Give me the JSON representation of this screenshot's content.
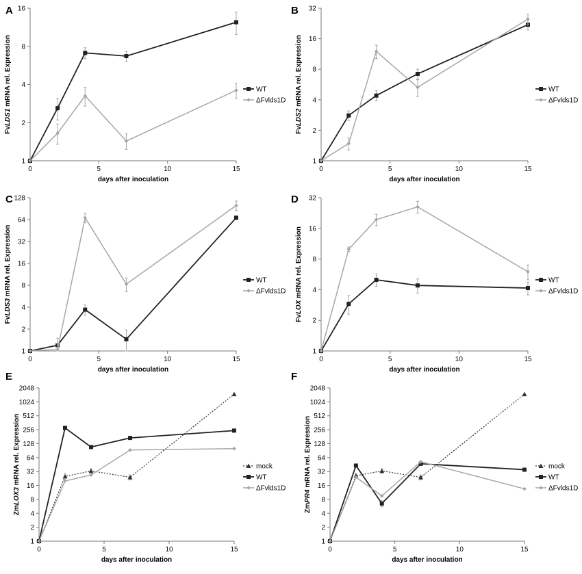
{
  "colors": {
    "wt": "#222222",
    "mutant": "#a6a6a6",
    "mock": "#333333",
    "axis": "#777777"
  },
  "chart_data": [
    {
      "panel": "A",
      "type": "line",
      "ylabel_prefix": "Fv",
      "ylabel_gene": "LDS1",
      "ylabel_suffix": " mRNA rel. Expression",
      "xlabel": "days after inoculation",
      "xticks": [
        0,
        5,
        10,
        15
      ],
      "yticks": [
        1,
        2,
        4,
        8,
        16
      ],
      "ylim": [
        1,
        16
      ],
      "xlim": [
        0,
        15
      ],
      "x": [
        0,
        2,
        4,
        7,
        15
      ],
      "series": [
        {
          "name": "WT",
          "marker": "square",
          "style": "wt",
          "values": [
            1,
            2.6,
            7.1,
            6.7,
            12.4
          ],
          "err": [
            0,
            0.5,
            0.7,
            0.6,
            2.5
          ]
        },
        {
          "name": "ΔFvlds1D",
          "marker": "diamond",
          "style": "mutant",
          "values": [
            1,
            1.65,
            3.25,
            1.43,
            3.6
          ],
          "err": [
            0,
            0.3,
            0.55,
            0.2,
            0.5
          ]
        }
      ]
    },
    {
      "panel": "B",
      "type": "line",
      "ylabel_prefix": "Fv",
      "ylabel_gene": "LDS2",
      "ylabel_suffix": " mRNA rel. Expression",
      "xlabel": "days after inoculation",
      "xticks": [
        0,
        5,
        10,
        15
      ],
      "yticks": [
        1,
        2,
        4,
        8,
        16,
        32
      ],
      "ylim": [
        1,
        32
      ],
      "xlim": [
        0,
        15
      ],
      "x": [
        0,
        2,
        4,
        7,
        15
      ],
      "series": [
        {
          "name": "WT",
          "marker": "square",
          "style": "wt",
          "values": [
            1,
            2.8,
            4.4,
            7.2,
            22
          ],
          "err": [
            0,
            0.3,
            0.5,
            0.8,
            2.5
          ]
        },
        {
          "name": "ΔFvlds1D",
          "marker": "diamond",
          "style": "mutant",
          "values": [
            1,
            1.48,
            12,
            5.3,
            25
          ],
          "err": [
            0,
            0.2,
            1.8,
            1.0,
            3.0
          ]
        }
      ]
    },
    {
      "panel": "C",
      "type": "line",
      "ylabel_prefix": "Fv",
      "ylabel_gene": "LDS3",
      "ylabel_suffix": " mRNA rel. Expression",
      "xlabel": "days after inoculation",
      "xticks": [
        0,
        5,
        10,
        15
      ],
      "yticks": [
        1,
        2,
        4,
        8,
        16,
        32,
        64,
        128
      ],
      "ylim": [
        1,
        128
      ],
      "xlim": [
        0,
        15
      ],
      "x": [
        0,
        2,
        4,
        7,
        15
      ],
      "series": [
        {
          "name": "WT",
          "marker": "square",
          "style": "wt",
          "values": [
            1,
            1.2,
            3.7,
            1.45,
            68
          ],
          "err": [
            0,
            0.3,
            0.6,
            0.5,
            4
          ]
        },
        {
          "name": "ΔFvlds1D",
          "marker": "diamond",
          "style": "mutant",
          "values": [
            1,
            1.05,
            68,
            8.3,
            100
          ],
          "err": [
            0,
            0.2,
            10,
            1.8,
            15
          ]
        }
      ]
    },
    {
      "panel": "D",
      "type": "line",
      "ylabel_prefix": "Fv",
      "ylabel_gene": "LOX",
      "ylabel_suffix": " mRNA rel. Expression",
      "xlabel": "days after inoculation",
      "xticks": [
        0,
        5,
        10,
        15
      ],
      "yticks": [
        1,
        2,
        4,
        8,
        16,
        32
      ],
      "ylim": [
        1,
        32
      ],
      "xlim": [
        0,
        15
      ],
      "x": [
        0,
        2,
        4,
        7,
        15
      ],
      "series": [
        {
          "name": "WT",
          "marker": "square",
          "style": "wt",
          "values": [
            1,
            2.9,
            5.0,
            4.4,
            4.15
          ],
          "err": [
            0,
            0.6,
            0.7,
            0.7,
            0.6
          ]
        },
        {
          "name": "ΔFvlds1D",
          "marker": "diamond",
          "style": "mutant",
          "values": [
            1,
            10,
            19.5,
            26,
            6
          ],
          "err": [
            0,
            0.5,
            2.5,
            3.5,
            1.0
          ]
        }
      ]
    },
    {
      "panel": "E",
      "type": "line",
      "ylabel_prefix": "Zm",
      "ylabel_gene": "LOX3",
      "ylabel_suffix": " mRNA rel. Expression",
      "xlabel": "days after inoculation",
      "xticks": [
        0,
        5,
        10,
        15
      ],
      "yticks": [
        1,
        2,
        4,
        8,
        16,
        32,
        64,
        128,
        256,
        512,
        1024,
        2048
      ],
      "ylim": [
        1,
        2048
      ],
      "xlim": [
        0,
        15
      ],
      "x": [
        0,
        2,
        4,
        7,
        15
      ],
      "series": [
        {
          "name": "mock",
          "marker": "triangle",
          "style": "mock",
          "values": [
            1,
            25,
            33,
            24,
            1500
          ],
          "err": [
            0,
            4,
            4,
            3,
            0
          ]
        },
        {
          "name": "WT",
          "marker": "square",
          "style": "wt",
          "values": [
            1,
            280,
            108,
            170,
            245
          ],
          "err": [
            0,
            0,
            0,
            0,
            0
          ]
        },
        {
          "name": "ΔFvlds1D",
          "marker": "diamond",
          "style": "mutant",
          "values": [
            1,
            20,
            27,
            93,
            100
          ],
          "err": [
            0,
            0,
            0,
            0,
            0
          ]
        }
      ]
    },
    {
      "panel": "F",
      "type": "line",
      "ylabel_prefix": "Zm",
      "ylabel_gene": "PR4",
      "ylabel_suffix": " mRNA rel. Expression",
      "xlabel": "days after inoculation",
      "xticks": [
        0,
        5,
        10,
        15
      ],
      "yticks": [
        1,
        2,
        4,
        8,
        16,
        32,
        64,
        128,
        256,
        512,
        1024,
        2048
      ],
      "ylim": [
        1,
        2048
      ],
      "xlim": [
        0,
        15
      ],
      "x": [
        0,
        2,
        4,
        7,
        15
      ],
      "series": [
        {
          "name": "mock",
          "marker": "triangle",
          "style": "mock",
          "values": [
            1,
            26,
            33,
            24,
            1500
          ],
          "err": [
            0,
            3,
            4,
            3,
            0
          ]
        },
        {
          "name": "WT",
          "marker": "square",
          "style": "wt",
          "values": [
            1,
            43,
            6.5,
            47,
            35
          ],
          "err": [
            0,
            0,
            1.0,
            0,
            0
          ]
        },
        {
          "name": "ΔFvlds1D",
          "marker": "diamond",
          "style": "mutant",
          "values": [
            1,
            24,
            9.5,
            52,
            13.5
          ],
          "err": [
            0,
            0,
            0,
            0,
            0
          ]
        }
      ]
    }
  ]
}
